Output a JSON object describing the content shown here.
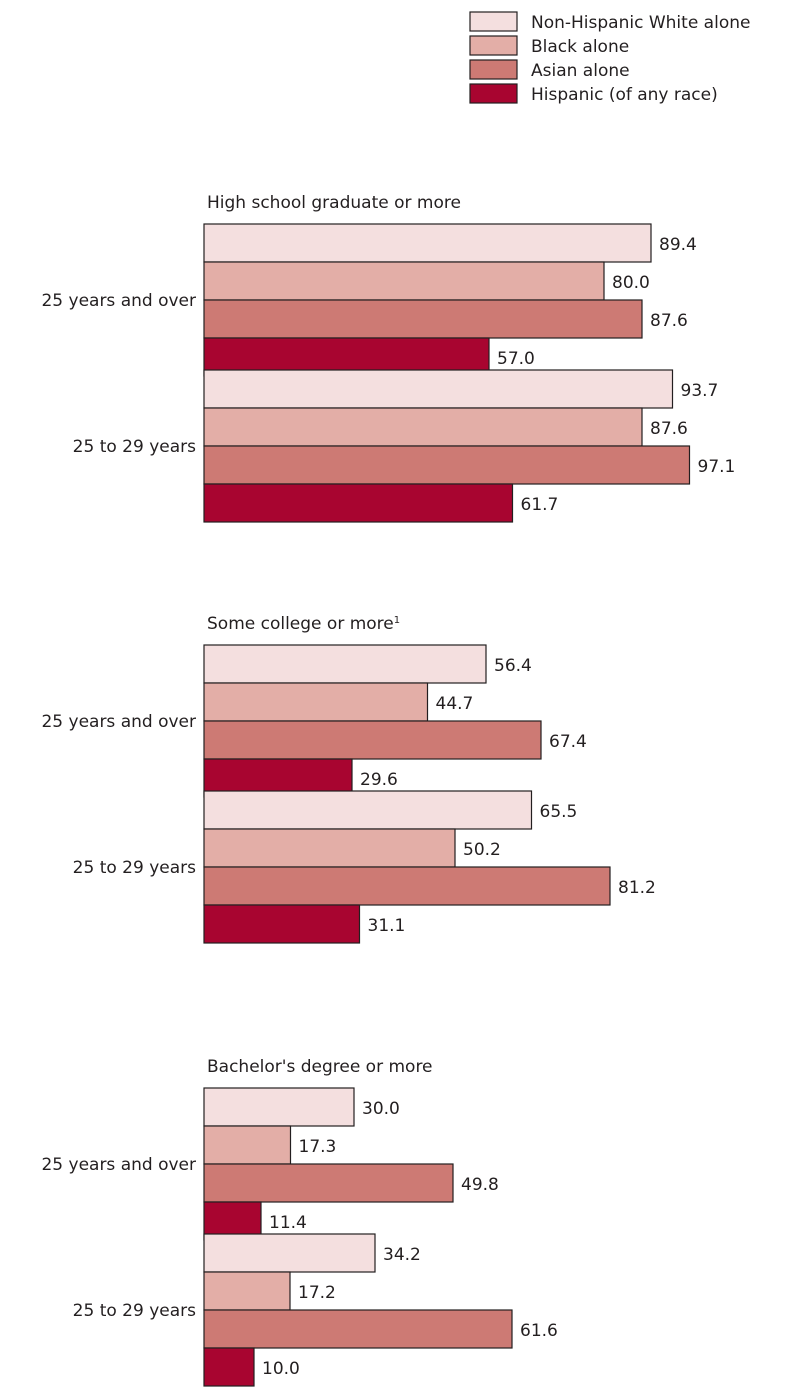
{
  "legend": [
    {
      "label": "Non-Hispanic White alone",
      "color": "#f4dfdf"
    },
    {
      "label": "Black alone",
      "color": "#e3aea7"
    },
    {
      "label": "Asian alone",
      "color": "#cd7a74"
    },
    {
      "label": "Hispanic (of any race)",
      "color": "#a80530"
    }
  ],
  "chart_data": {
    "type": "bar",
    "orientation": "horizontal",
    "legend_position": "top-right",
    "grid": false,
    "series_names": [
      "Non-Hispanic White alone",
      "Black alone",
      "Asian alone",
      "Hispanic (of any race)"
    ],
    "panels": [
      {
        "title": "High school graduate or more",
        "footnote": "",
        "groups": [
          {
            "label": "25 years and over",
            "values": [
              89.4,
              80.0,
              87.6,
              57.0
            ]
          },
          {
            "label": "25 to 29 years",
            "values": [
              93.7,
              87.6,
              97.1,
              61.7
            ]
          }
        ]
      },
      {
        "title": "Some college or more",
        "footnote": "1",
        "groups": [
          {
            "label": "25 years and over",
            "values": [
              56.4,
              44.7,
              67.4,
              29.6
            ]
          },
          {
            "label": "25 to 29 years",
            "values": [
              65.5,
              50.2,
              81.2,
              31.1
            ]
          }
        ]
      },
      {
        "title": "Bachelor's degree or more",
        "footnote": "",
        "groups": [
          {
            "label": "25 years and over",
            "values": [
              30.0,
              17.3,
              49.8,
              11.4
            ]
          },
          {
            "label": "25 to 29 years",
            "values": [
              34.2,
              17.2,
              61.6,
              10.0
            ]
          }
        ]
      }
    ]
  }
}
